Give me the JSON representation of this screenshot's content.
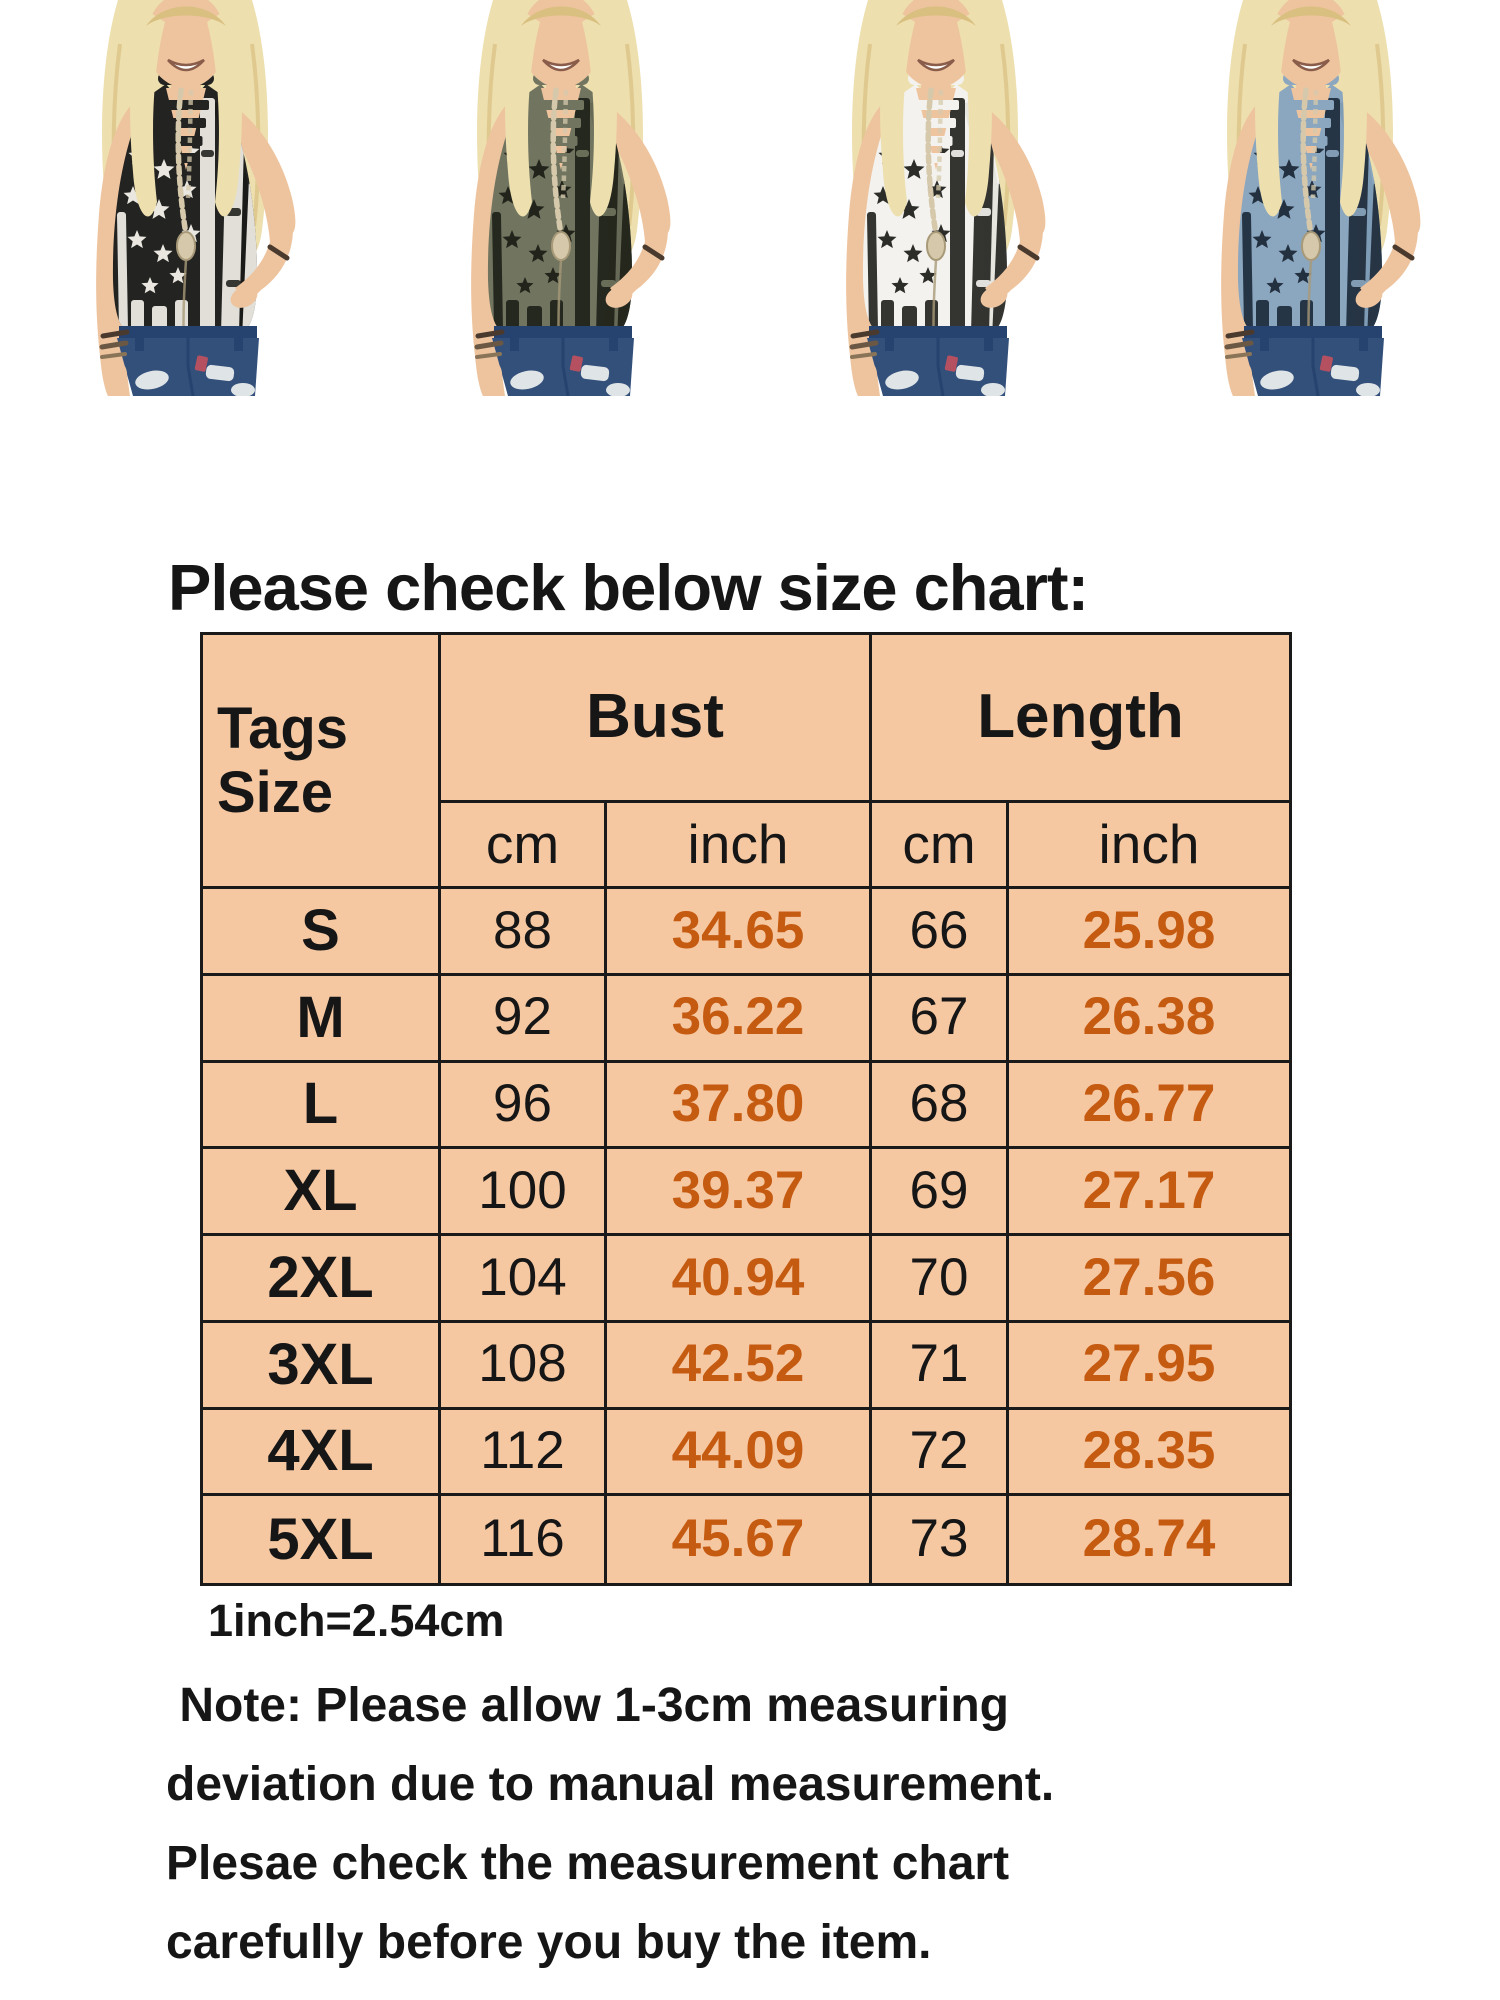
{
  "header": {
    "title": "Please check below size chart:"
  },
  "gallery": {
    "description": "American flag print cage-neck sleeveless tank top shown on model in four colorways",
    "variants": [
      {
        "id": "black",
        "label": "black flag tank top",
        "shirt": "#232321",
        "shirt_shadow": "#101010",
        "print": "#e9e7e0"
      },
      {
        "id": "army-green",
        "label": "army green flag tank top",
        "shirt": "#71755f",
        "shirt_shadow": "#585c49",
        "print": "#22241b"
      },
      {
        "id": "white",
        "label": "white flag tank top",
        "shirt": "#f3f2ee",
        "shirt_shadow": "#d8d6cd",
        "print": "#2c2c29"
      },
      {
        "id": "blue",
        "label": "blue flag tank top",
        "shirt": "#8ba6bf",
        "shirt_shadow": "#7190ab",
        "print": "#22303f"
      }
    ],
    "figure_colors": {
      "skin": "#eec49f",
      "hair": "#eddfae",
      "hair_shadow": "#d9bf80",
      "shorts": "#33507b",
      "shorts_dark": "#26426e",
      "distress": "#dfe4e6",
      "pocket_red": "#b55060",
      "bead": "#d6c9ab",
      "bead_edge": "#a89a78",
      "mouth": "#8a5d4a",
      "bracelet": "#4a3a2e"
    }
  },
  "size_chart": {
    "corner_header": "Tags Size",
    "group_headers": [
      "Bust",
      "Length"
    ],
    "unit_headers": [
      "cm",
      "inch",
      "cm",
      "inch"
    ],
    "rows": [
      {
        "size": "S",
        "bust_cm": "88",
        "bust_inch": "34.65",
        "length_cm": "66",
        "length_inch": "25.98"
      },
      {
        "size": "M",
        "bust_cm": "92",
        "bust_inch": "36.22",
        "length_cm": "67",
        "length_inch": "26.38"
      },
      {
        "size": "L",
        "bust_cm": "96",
        "bust_inch": "37.80",
        "length_cm": "68",
        "length_inch": "26.77"
      },
      {
        "size": "XL",
        "bust_cm": "100",
        "bust_inch": "39.37",
        "length_cm": "69",
        "length_inch": "27.17"
      },
      {
        "size": "2XL",
        "bust_cm": "104",
        "bust_inch": "40.94",
        "length_cm": "70",
        "length_inch": "27.56"
      },
      {
        "size": "3XL",
        "bust_cm": "108",
        "bust_inch": "42.52",
        "length_cm": "71",
        "length_inch": "27.95"
      },
      {
        "size": "4XL",
        "bust_cm": "112",
        "bust_inch": "44.09",
        "length_cm": "72",
        "length_inch": "28.35"
      },
      {
        "size": "5XL",
        "bust_cm": "116",
        "bust_inch": "45.67",
        "length_cm": "73",
        "length_inch": "28.74"
      }
    ]
  },
  "footer": {
    "conversion": "1inch=2.54cm",
    "note_lines": [
      " Note: Please allow 1-3cm measuring",
      "deviation due to manual measurement.",
      "Plesae check the measurement chart",
      "carefully before you buy the item."
    ]
  },
  "colors": {
    "page_bg": "#ffffff",
    "table_bg": "#f6c8a2",
    "inch_value": "#c55a11",
    "ink": "#161616",
    "border": "#1a1a1a"
  }
}
